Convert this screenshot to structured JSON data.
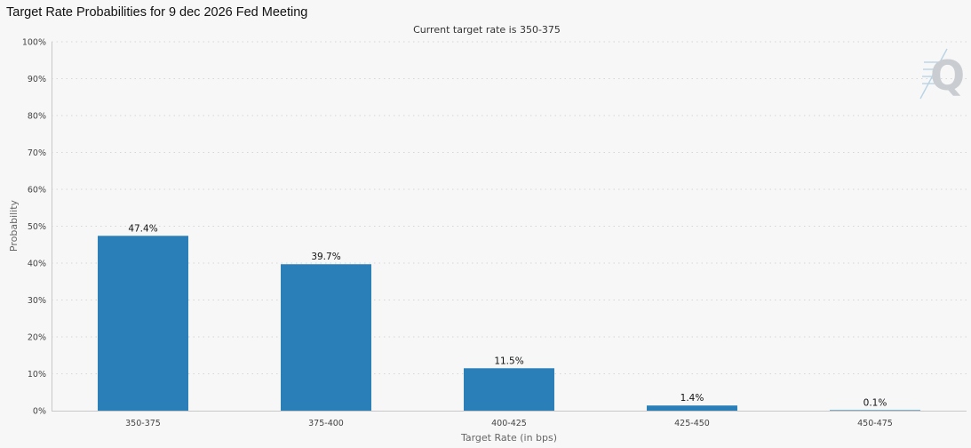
{
  "page": {
    "title": "Target Rate Probabilities for 9 dec 2026 Fed Meeting"
  },
  "logo": {
    "icon": "q-logo-icon",
    "text": "Q"
  },
  "chart_data": {
    "type": "bar",
    "title": "",
    "subtitle": "Current target rate is 350-375",
    "xlabel": "Target Rate (in bps)",
    "ylabel": "Probability",
    "categories": [
      "350-375",
      "375-400",
      "400-425",
      "425-450",
      "450-475"
    ],
    "values": [
      47.4,
      39.7,
      11.5,
      1.4,
      0.1
    ],
    "data_labels": [
      "47.4%",
      "39.7%",
      "11.5%",
      "1.4%",
      "0.1%"
    ],
    "ylim": [
      0,
      100
    ],
    "yticks": [
      0,
      10,
      20,
      30,
      40,
      50,
      60,
      70,
      80,
      90,
      100
    ],
    "ytick_labels": [
      "0%",
      "10%",
      "20%",
      "30%",
      "40%",
      "50%",
      "60%",
      "70%",
      "80%",
      "90%",
      "100%"
    ],
    "grid": true,
    "legend": "none",
    "bar_color": "#2b7fb8"
  }
}
